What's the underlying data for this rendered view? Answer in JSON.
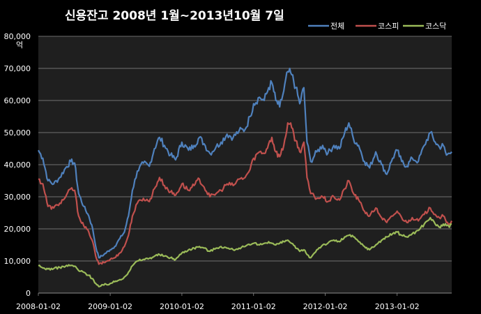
{
  "chart_data": {
    "type": "line",
    "title": "신용잔고 2008년 1월~2013년10월 7일",
    "ylabel": "억",
    "xlabel": "",
    "ylim": [
      0,
      80000
    ],
    "yticks": [
      "0",
      "10,000",
      "20,000",
      "30,000",
      "40,000",
      "50,000",
      "60,000",
      "70,000",
      "80,000"
    ],
    "xticks": [
      "2008-01-02",
      "2009-01-02",
      "2010-01-02",
      "2011-01-02",
      "2012-01-02",
      "2013-01-02"
    ],
    "xrange": [
      "2008-01-02",
      "2013-10-07"
    ],
    "grid": true,
    "legend_position": "top-right",
    "series": [
      {
        "name": "전체",
        "color": "#4f81bd",
        "points": [
          [
            "2008-01-02",
            44500
          ],
          [
            "2008-01-25",
            42000
          ],
          [
            "2008-02-20",
            35000
          ],
          [
            "2008-03-20",
            34000
          ],
          [
            "2008-04-20",
            36000
          ],
          [
            "2008-05-20",
            39000
          ],
          [
            "2008-06-15",
            41000
          ],
          [
            "2008-07-05",
            40500
          ],
          [
            "2008-07-25",
            31000
          ],
          [
            "2008-08-20",
            27000
          ],
          [
            "2008-09-15",
            24000
          ],
          [
            "2008-10-05",
            20000
          ],
          [
            "2008-10-20",
            14500
          ],
          [
            "2008-11-05",
            11000
          ],
          [
            "2008-12-01",
            12000
          ],
          [
            "2009-01-02",
            13500
          ],
          [
            "2009-01-25",
            14500
          ],
          [
            "2009-02-20",
            17000
          ],
          [
            "2009-03-15",
            19000
          ],
          [
            "2009-04-05",
            24000
          ],
          [
            "2009-04-25",
            32000
          ],
          [
            "2009-05-20",
            38000
          ],
          [
            "2009-06-20",
            40500
          ],
          [
            "2009-07-20",
            39500
          ],
          [
            "2009-08-15",
            45000
          ],
          [
            "2009-09-10",
            48500
          ],
          [
            "2009-10-05",
            46000
          ],
          [
            "2009-11-05",
            43000
          ],
          [
            "2009-12-01",
            41500
          ],
          [
            "2010-01-02",
            47000
          ],
          [
            "2010-02-05",
            44500
          ],
          [
            "2010-03-05",
            46000
          ],
          [
            "2010-04-01",
            48500
          ],
          [
            "2010-04-25",
            46500
          ],
          [
            "2010-05-25",
            43500
          ],
          [
            "2010-06-25",
            45500
          ],
          [
            "2010-07-20",
            47000
          ],
          [
            "2010-08-20",
            49500
          ],
          [
            "2010-09-20",
            48500
          ],
          [
            "2010-10-20",
            50500
          ],
          [
            "2010-11-20",
            51000
          ],
          [
            "2010-12-15",
            55000
          ],
          [
            "2011-01-02",
            59000
          ],
          [
            "2011-02-01",
            61000
          ],
          [
            "2011-02-25",
            60000
          ],
          [
            "2011-03-20",
            64000
          ],
          [
            "2011-04-05",
            65500
          ],
          [
            "2011-04-25",
            60000
          ],
          [
            "2011-05-15",
            58000
          ],
          [
            "2011-06-05",
            63000
          ],
          [
            "2011-06-25",
            69000
          ],
          [
            "2011-07-15",
            68000
          ],
          [
            "2011-08-05",
            64000
          ],
          [
            "2011-08-25",
            59000
          ],
          [
            "2011-09-15",
            64000
          ],
          [
            "2011-10-01",
            47000
          ],
          [
            "2011-10-20",
            41000
          ],
          [
            "2011-11-20",
            44000
          ],
          [
            "2011-12-20",
            46000
          ],
          [
            "2012-01-15",
            43500
          ],
          [
            "2012-02-15",
            46000
          ],
          [
            "2012-03-15",
            45000
          ],
          [
            "2012-04-10",
            50000
          ],
          [
            "2012-05-01",
            53000
          ],
          [
            "2012-05-25",
            48000
          ],
          [
            "2012-06-20",
            46000
          ],
          [
            "2012-07-20",
            41000
          ],
          [
            "2012-08-15",
            39000
          ],
          [
            "2012-09-15",
            44000
          ],
          [
            "2012-10-15",
            40000
          ],
          [
            "2012-11-10",
            37000
          ],
          [
            "2012-12-10",
            42000
          ],
          [
            "2013-01-02",
            44500
          ],
          [
            "2013-01-25",
            41000
          ],
          [
            "2013-02-20",
            39500
          ],
          [
            "2013-03-20",
            42000
          ],
          [
            "2013-04-20",
            41000
          ],
          [
            "2013-05-20",
            46000
          ],
          [
            "2013-06-20",
            50000
          ],
          [
            "2013-07-15",
            47000
          ],
          [
            "2013-08-05",
            45500
          ],
          [
            "2013-08-25",
            46000
          ],
          [
            "2013-09-10",
            43000
          ],
          [
            "2013-09-25",
            43500
          ],
          [
            "2013-10-07",
            44000
          ]
        ]
      },
      {
        "name": "코스피",
        "color": "#c0504d",
        "points": [
          [
            "2008-01-02",
            35500
          ],
          [
            "2008-01-25",
            34000
          ],
          [
            "2008-02-20",
            27000
          ],
          [
            "2008-03-20",
            26500
          ],
          [
            "2008-04-20",
            28000
          ],
          [
            "2008-05-20",
            30000
          ],
          [
            "2008-06-15",
            32500
          ],
          [
            "2008-07-05",
            32000
          ],
          [
            "2008-07-25",
            24000
          ],
          [
            "2008-08-20",
            21000
          ],
          [
            "2008-09-15",
            19000
          ],
          [
            "2008-10-05",
            16000
          ],
          [
            "2008-10-20",
            11500
          ],
          [
            "2008-11-05",
            9000
          ],
          [
            "2008-12-01",
            9500
          ],
          [
            "2009-01-02",
            10500
          ],
          [
            "2009-01-25",
            11000
          ],
          [
            "2009-02-20",
            12500
          ],
          [
            "2009-03-15",
            14500
          ],
          [
            "2009-04-05",
            18000
          ],
          [
            "2009-04-25",
            24000
          ],
          [
            "2009-05-20",
            28000
          ],
          [
            "2009-06-20",
            29500
          ],
          [
            "2009-07-20",
            28500
          ],
          [
            "2009-08-15",
            32500
          ],
          [
            "2009-09-10",
            36000
          ],
          [
            "2009-10-05",
            33500
          ],
          [
            "2009-11-05",
            31500
          ],
          [
            "2009-12-01",
            30500
          ],
          [
            "2010-01-02",
            34000
          ],
          [
            "2010-02-05",
            32000
          ],
          [
            "2010-03-05",
            33500
          ],
          [
            "2010-04-01",
            35500
          ],
          [
            "2010-04-25",
            33000
          ],
          [
            "2010-05-25",
            30000
          ],
          [
            "2010-06-25",
            31000
          ],
          [
            "2010-07-20",
            32000
          ],
          [
            "2010-08-20",
            34000
          ],
          [
            "2010-09-20",
            33500
          ],
          [
            "2010-10-20",
            35500
          ],
          [
            "2010-11-20",
            36000
          ],
          [
            "2010-12-15",
            38500
          ],
          [
            "2011-01-02",
            42000
          ],
          [
            "2011-02-01",
            44000
          ],
          [
            "2011-02-25",
            43500
          ],
          [
            "2011-03-20",
            46500
          ],
          [
            "2011-04-05",
            48500
          ],
          [
            "2011-04-25",
            44000
          ],
          [
            "2011-05-15",
            42500
          ],
          [
            "2011-06-05",
            46000
          ],
          [
            "2011-06-25",
            53000
          ],
          [
            "2011-07-15",
            51500
          ],
          [
            "2011-08-05",
            47500
          ],
          [
            "2011-08-25",
            44000
          ],
          [
            "2011-09-15",
            47000
          ],
          [
            "2011-10-01",
            36000
          ],
          [
            "2011-10-20",
            31000
          ],
          [
            "2011-11-20",
            29500
          ],
          [
            "2011-12-20",
            30000
          ],
          [
            "2012-01-15",
            28500
          ],
          [
            "2012-02-15",
            30000
          ],
          [
            "2012-03-15",
            29000
          ],
          [
            "2012-04-10",
            32500
          ],
          [
            "2012-05-01",
            35000
          ],
          [
            "2012-05-25",
            31000
          ],
          [
            "2012-06-20",
            29000
          ],
          [
            "2012-07-20",
            25500
          ],
          [
            "2012-08-15",
            24000
          ],
          [
            "2012-09-15",
            26500
          ],
          [
            "2012-10-15",
            23500
          ],
          [
            "2012-11-10",
            22000
          ],
          [
            "2012-12-10",
            24000
          ],
          [
            "2013-01-02",
            25500
          ],
          [
            "2013-01-25",
            23500
          ],
          [
            "2013-02-20",
            22000
          ],
          [
            "2013-03-20",
            23500
          ],
          [
            "2013-04-20",
            22500
          ],
          [
            "2013-05-20",
            24500
          ],
          [
            "2013-06-20",
            26500
          ],
          [
            "2013-07-15",
            24500
          ],
          [
            "2013-08-05",
            23500
          ],
          [
            "2013-08-25",
            24000
          ],
          [
            "2013-09-10",
            22000
          ],
          [
            "2013-09-25",
            21500
          ],
          [
            "2013-10-07",
            22500
          ]
        ]
      },
      {
        "name": "코스닥",
        "color": "#9bbb59",
        "points": [
          [
            "2008-01-02",
            8500
          ],
          [
            "2008-01-25",
            7800
          ],
          [
            "2008-02-20",
            7500
          ],
          [
            "2008-03-20",
            7600
          ],
          [
            "2008-04-20",
            8000
          ],
          [
            "2008-05-20",
            8400
          ],
          [
            "2008-06-15",
            8600
          ],
          [
            "2008-07-05",
            8400
          ],
          [
            "2008-07-25",
            7000
          ],
          [
            "2008-08-20",
            6500
          ],
          [
            "2008-09-15",
            5500
          ],
          [
            "2008-10-05",
            4500
          ],
          [
            "2008-10-20",
            3000
          ],
          [
            "2008-11-05",
            2000
          ],
          [
            "2008-12-01",
            2500
          ],
          [
            "2009-01-02",
            3000
          ],
          [
            "2009-01-25",
            3500
          ],
          [
            "2009-02-20",
            4200
          ],
          [
            "2009-03-15",
            5000
          ],
          [
            "2009-04-05",
            6500
          ],
          [
            "2009-04-25",
            8500
          ],
          [
            "2009-05-20",
            10000
          ],
          [
            "2009-06-20",
            10500
          ],
          [
            "2009-07-20",
            10800
          ],
          [
            "2009-08-15",
            11500
          ],
          [
            "2009-09-10",
            12000
          ],
          [
            "2009-10-05",
            11500
          ],
          [
            "2009-11-05",
            11000
          ],
          [
            "2009-12-01",
            10500
          ],
          [
            "2010-01-02",
            12500
          ],
          [
            "2010-02-05",
            13500
          ],
          [
            "2010-03-05",
            14000
          ],
          [
            "2010-04-01",
            14500
          ],
          [
            "2010-04-25",
            14000
          ],
          [
            "2010-05-25",
            13000
          ],
          [
            "2010-06-25",
            14000
          ],
          [
            "2010-07-20",
            14500
          ],
          [
            "2010-08-20",
            14000
          ],
          [
            "2010-09-20",
            13500
          ],
          [
            "2010-10-20",
            14000
          ],
          [
            "2010-11-20",
            14500
          ],
          [
            "2010-12-15",
            15000
          ],
          [
            "2011-01-02",
            15500
          ],
          [
            "2011-02-01",
            15000
          ],
          [
            "2011-02-25",
            15500
          ],
          [
            "2011-03-20",
            16000
          ],
          [
            "2011-04-05",
            15500
          ],
          [
            "2011-04-25",
            15000
          ],
          [
            "2011-05-15",
            15500
          ],
          [
            "2011-06-05",
            16000
          ],
          [
            "2011-06-25",
            16500
          ],
          [
            "2011-07-15",
            15500
          ],
          [
            "2011-08-05",
            14000
          ],
          [
            "2011-08-25",
            13000
          ],
          [
            "2011-09-15",
            13500
          ],
          [
            "2011-10-01",
            12000
          ],
          [
            "2011-10-20",
            11000
          ],
          [
            "2011-11-20",
            13500
          ],
          [
            "2011-12-20",
            15000
          ],
          [
            "2012-01-15",
            15500
          ],
          [
            "2012-02-15",
            16500
          ],
          [
            "2012-03-15",
            16000
          ],
          [
            "2012-04-10",
            17500
          ],
          [
            "2012-05-01",
            18000
          ],
          [
            "2012-05-25",
            17500
          ],
          [
            "2012-06-20",
            16000
          ],
          [
            "2012-07-20",
            14500
          ],
          [
            "2012-08-15",
            13500
          ],
          [
            "2012-09-15",
            15000
          ],
          [
            "2012-10-15",
            16500
          ],
          [
            "2012-11-10",
            17500
          ],
          [
            "2012-12-10",
            18500
          ],
          [
            "2013-01-02",
            19000
          ],
          [
            "2013-01-25",
            18000
          ],
          [
            "2013-02-20",
            17500
          ],
          [
            "2013-03-20",
            18500
          ],
          [
            "2013-04-20",
            19500
          ],
          [
            "2013-05-20",
            21500
          ],
          [
            "2013-06-20",
            23500
          ],
          [
            "2013-07-15",
            21500
          ],
          [
            "2013-08-05",
            20500
          ],
          [
            "2013-08-25",
            21500
          ],
          [
            "2013-09-10",
            21000
          ],
          [
            "2013-09-25",
            20500
          ],
          [
            "2013-10-07",
            21500
          ]
        ]
      }
    ]
  }
}
